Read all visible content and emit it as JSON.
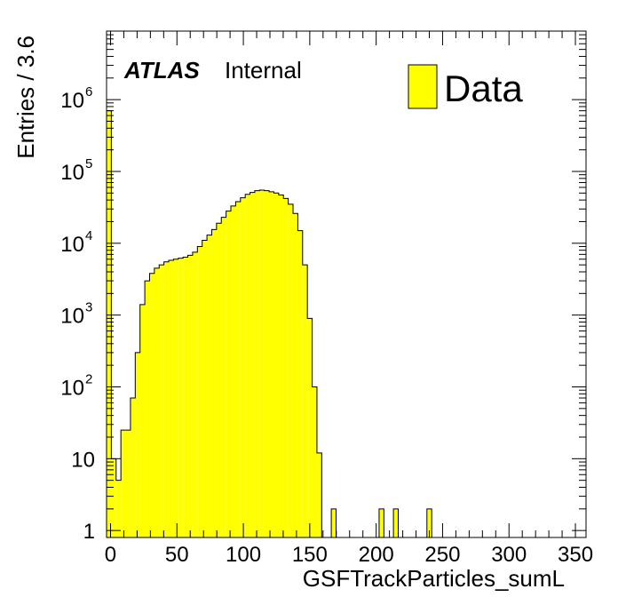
{
  "chart_data": {
    "type": "bar",
    "xlabel": "GSFTrackParticles_sumL",
    "ylabel": "Entries / 3.6",
    "xlim": [
      -3,
      358
    ],
    "ylim": [
      0.8,
      9000000
    ],
    "yscale": "log",
    "bin_width": 3.6,
    "x_ticks": [
      "0",
      "50",
      "100",
      "150",
      "200",
      "250",
      "300",
      "350"
    ],
    "y_ticks": [
      {
        "base": "1",
        "exp": ""
      },
      {
        "base": "10",
        "exp": ""
      },
      {
        "base": "10",
        "exp": "2"
      },
      {
        "base": "10",
        "exp": "3"
      },
      {
        "base": "10",
        "exp": "4"
      },
      {
        "base": "10",
        "exp": "5"
      },
      {
        "base": "10",
        "exp": "6"
      }
    ],
    "bins_start": -3,
    "values": [
      700000,
      10,
      5,
      25,
      25,
      70,
      300,
      1400,
      3000,
      3800,
      4500,
      5000,
      5500,
      5800,
      6000,
      6200,
      6400,
      6800,
      7500,
      9000,
      11000,
      13000,
      15500,
      19000,
      23000,
      28000,
      33000,
      38000,
      43000,
      48000,
      51000,
      54000,
      55000,
      54000,
      52000,
      50000,
      47000,
      42000,
      35000,
      26000,
      15000,
      5000,
      900,
      100,
      12,
      0,
      0.8,
      2,
      0,
      0,
      0,
      0,
      0,
      0,
      0,
      0,
      0,
      2,
      0,
      0,
      2,
      0,
      0,
      0,
      0,
      0,
      0,
      2,
      0
    ],
    "color": "#ffff00",
    "legend": {
      "label": "Data",
      "position": "top-right"
    },
    "annotation": {
      "bold": "ATLAS",
      "normal": "Internal"
    },
    "grid": false
  }
}
